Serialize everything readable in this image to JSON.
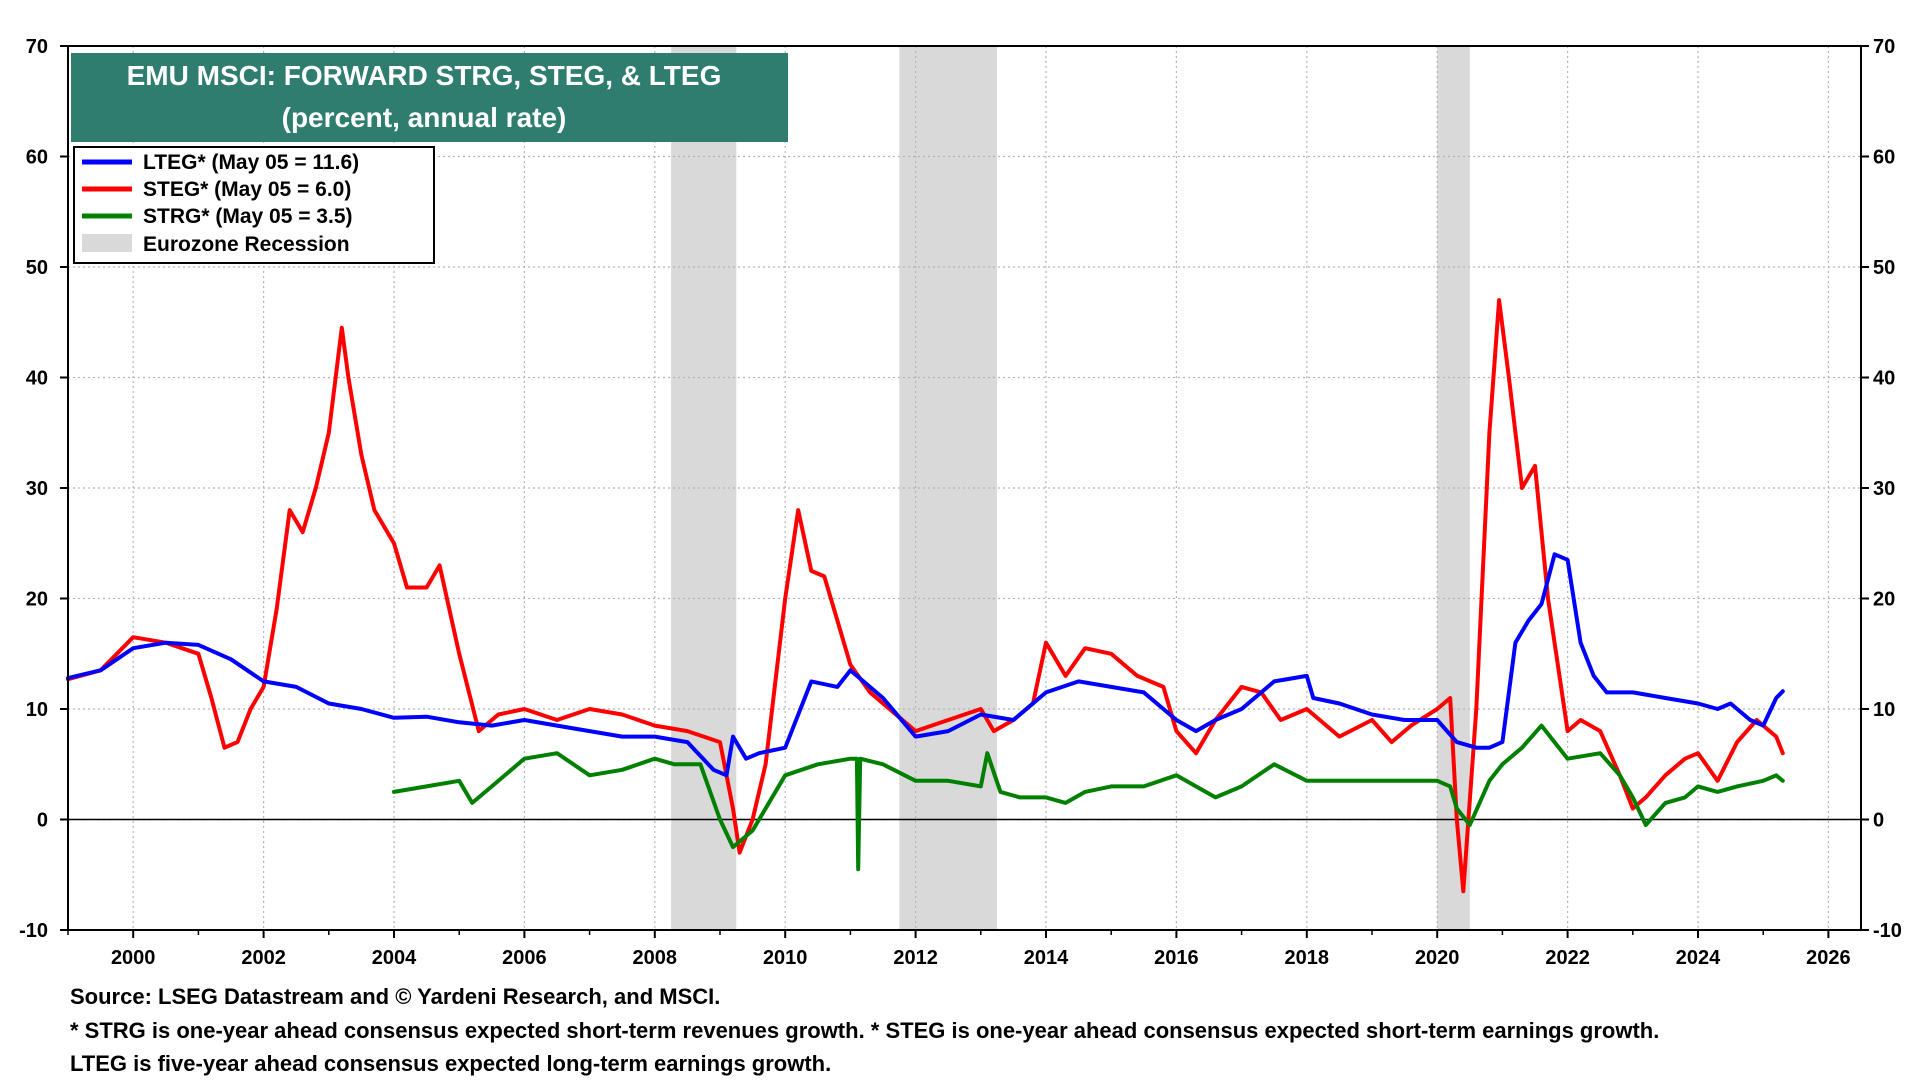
{
  "chart_data": {
    "type": "line",
    "title": "EMU MSCI: FORWARD STRG, STEG, & LTEG",
    "subtitle": "(percent, annual rate)",
    "title_background": "#2e7d6e",
    "xlim": [
      1999.0,
      2026.5
    ],
    "ylim": [
      -10,
      70
    ],
    "y_ticks": [
      -10,
      0,
      10,
      20,
      30,
      40,
      50,
      60,
      70
    ],
    "x_ticks": [
      2000,
      2002,
      2004,
      2006,
      2008,
      2010,
      2012,
      2014,
      2016,
      2018,
      2020,
      2022,
      2024,
      2026
    ],
    "grid": true,
    "legend_position": "top-left",
    "recessions": [
      [
        2008.25,
        2009.25
      ],
      [
        2011.75,
        2013.25
      ],
      [
        2020.0,
        2020.5
      ]
    ],
    "recession_label": "Eurozone Recession",
    "recession_color": "#d9d9d9",
    "series": [
      {
        "name": "LTEG* (May 05 = 11.6)",
        "color": "#0000ff",
        "x": [
          1999.0,
          1999.5,
          2000.0,
          2000.5,
          2001.0,
          2001.5,
          2002.0,
          2002.5,
          2003.0,
          2003.5,
          2004.0,
          2004.5,
          2005.0,
          2005.5,
          2006.0,
          2006.5,
          2007.0,
          2007.5,
          2008.0,
          2008.5,
          2008.9,
          2009.1,
          2009.2,
          2009.4,
          2009.6,
          2010.0,
          2010.4,
          2010.8,
          2011.0,
          2011.5,
          2012.0,
          2012.5,
          2013.0,
          2013.5,
          2014.0,
          2014.5,
          2015.0,
          2015.5,
          2016.0,
          2016.3,
          2016.6,
          2017.0,
          2017.5,
          2018.0,
          2018.1,
          2018.5,
          2019.0,
          2019.5,
          2020.0,
          2020.3,
          2020.6,
          2020.8,
          2021.0,
          2021.2,
          2021.4,
          2021.6,
          2021.8,
          2022.0,
          2022.2,
          2022.4,
          2022.6,
          2023.0,
          2023.5,
          2024.0,
          2024.3,
          2024.5,
          2024.8,
          2025.0,
          2025.2,
          2025.3
        ],
        "y": [
          12.8,
          13.5,
          15.5,
          16.0,
          15.8,
          14.5,
          12.5,
          12.0,
          10.5,
          10.0,
          9.2,
          9.3,
          8.8,
          8.5,
          9.0,
          8.5,
          8.0,
          7.5,
          7.5,
          7.0,
          4.5,
          4.0,
          7.5,
          5.5,
          6.0,
          6.5,
          12.5,
          12.0,
          13.5,
          11.0,
          7.5,
          8.0,
          9.5,
          9.0,
          11.5,
          12.5,
          12.0,
          11.5,
          9.0,
          8.0,
          9.0,
          10.0,
          12.5,
          13.0,
          11.0,
          10.5,
          9.5,
          9.0,
          9.0,
          7.0,
          6.5,
          6.5,
          7.0,
          16.0,
          18.0,
          19.5,
          24.0,
          23.5,
          16.0,
          13.0,
          11.5,
          11.5,
          11.0,
          10.5,
          10.0,
          10.5,
          9.0,
          8.5,
          11.0,
          11.6
        ]
      },
      {
        "name": "STEG* (May 05 = 6.0)",
        "color": "#ff0000",
        "x": [
          1999.0,
          1999.5,
          2000.0,
          2000.5,
          2001.0,
          2001.2,
          2001.4,
          2001.6,
          2001.8,
          2002.0,
          2002.2,
          2002.4,
          2002.6,
          2002.8,
          2003.0,
          2003.2,
          2003.3,
          2003.5,
          2003.7,
          2004.0,
          2004.2,
          2004.5,
          2004.7,
          2005.0,
          2005.3,
          2005.6,
          2006.0,
          2006.5,
          2007.0,
          2007.5,
          2008.0,
          2008.5,
          2009.0,
          2009.2,
          2009.3,
          2009.5,
          2009.7,
          2010.0,
          2010.2,
          2010.4,
          2010.6,
          2010.8,
          2011.0,
          2011.3,
          2011.6,
          2012.0,
          2012.5,
          2013.0,
          2013.2,
          2013.5,
          2013.8,
          2014.0,
          2014.3,
          2014.6,
          2015.0,
          2015.4,
          2015.8,
          2016.0,
          2016.3,
          2016.6,
          2017.0,
          2017.3,
          2017.6,
          2018.0,
          2018.5,
          2019.0,
          2019.3,
          2019.6,
          2020.0,
          2020.2,
          2020.3,
          2020.4,
          2020.6,
          2020.8,
          2020.95,
          2021.1,
          2021.3,
          2021.5,
          2021.7,
          2021.9,
          2022.0,
          2022.2,
          2022.5,
          2022.8,
          2023.0,
          2023.2,
          2023.5,
          2023.8,
          2024.0,
          2024.3,
          2024.6,
          2024.9,
          2025.0,
          2025.2,
          2025.3
        ],
        "y": [
          12.7,
          13.5,
          16.5,
          16.0,
          15.0,
          11.0,
          6.5,
          7.0,
          10.0,
          12.0,
          19.0,
          28.0,
          26.0,
          30.0,
          35.0,
          44.5,
          40.0,
          33.0,
          28.0,
          25.0,
          21.0,
          21.0,
          23.0,
          15.0,
          8.0,
          9.5,
          10.0,
          9.0,
          10.0,
          9.5,
          8.5,
          8.0,
          7.0,
          1.0,
          -3.0,
          0.0,
          5.0,
          20.0,
          28.0,
          22.5,
          22.0,
          18.0,
          14.0,
          11.5,
          10.0,
          8.0,
          9.0,
          10.0,
          8.0,
          9.0,
          10.5,
          16.0,
          13.0,
          15.5,
          15.0,
          13.0,
          12.0,
          8.0,
          6.0,
          9.0,
          12.0,
          11.5,
          9.0,
          10.0,
          7.5,
          9.0,
          7.0,
          8.5,
          10.0,
          11.0,
          0.0,
          -6.5,
          10.0,
          35.0,
          47.0,
          40.0,
          30.0,
          32.0,
          20.0,
          12.0,
          8.0,
          9.0,
          8.0,
          4.0,
          1.0,
          2.0,
          4.0,
          5.5,
          6.0,
          3.5,
          7.0,
          9.0,
          8.5,
          7.5,
          6.0
        ]
      },
      {
        "name": "STRG* (May 05 = 3.5)",
        "color": "#008000",
        "x": [
          2004.0,
          2004.5,
          2005.0,
          2005.2,
          2005.5,
          2006.0,
          2006.5,
          2007.0,
          2007.5,
          2008.0,
          2008.3,
          2008.7,
          2009.0,
          2009.2,
          2009.5,
          2010.0,
          2010.5,
          2011.0,
          2011.1,
          2011.12,
          2011.15,
          2011.5,
          2012.0,
          2012.5,
          2013.0,
          2013.1,
          2013.3,
          2013.6,
          2014.0,
          2014.3,
          2014.6,
          2015.0,
          2015.5,
          2016.0,
          2016.3,
          2016.6,
          2017.0,
          2017.5,
          2018.0,
          2018.5,
          2019.0,
          2019.5,
          2020.0,
          2020.2,
          2020.3,
          2020.5,
          2020.8,
          2021.0,
          2021.3,
          2021.6,
          2022.0,
          2022.5,
          2022.8,
          2023.0,
          2023.2,
          2023.5,
          2023.8,
          2024.0,
          2024.3,
          2024.6,
          2025.0,
          2025.2,
          2025.3
        ],
        "y": [
          2.5,
          3.0,
          3.5,
          1.5,
          3.0,
          5.5,
          6.0,
          4.0,
          4.5,
          5.5,
          5.0,
          5.0,
          0.0,
          -2.5,
          -1.0,
          4.0,
          5.0,
          5.5,
          5.5,
          -4.5,
          5.5,
          5.0,
          3.5,
          3.5,
          3.0,
          6.0,
          2.5,
          2.0,
          2.0,
          1.5,
          2.5,
          3.0,
          3.0,
          4.0,
          3.0,
          2.0,
          3.0,
          5.0,
          3.5,
          3.5,
          3.5,
          3.5,
          3.5,
          3.0,
          1.0,
          -0.5,
          3.5,
          5.0,
          6.5,
          8.5,
          5.5,
          6.0,
          4.0,
          2.0,
          -0.5,
          1.5,
          2.0,
          3.0,
          2.5,
          3.0,
          3.5,
          4.0,
          3.5
        ]
      }
    ]
  },
  "footnotes": {
    "source": "Source: LSEG Datastream and © Yardeni Research, and MSCI.",
    "note1": "* STRG is one-year ahead consensus expected short-term revenues growth. * STEG is one-year ahead consensus expected short-term earnings growth.",
    "note2": "LTEG is five-year ahead consensus expected long-term earnings growth."
  }
}
